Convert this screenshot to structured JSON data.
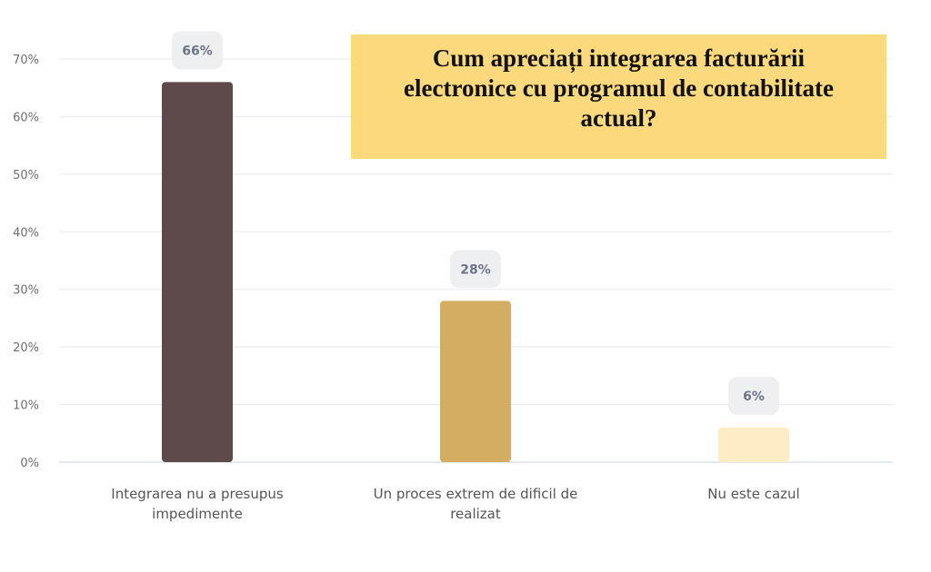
{
  "chart_data": {
    "type": "bar",
    "title": "Cum apreciați integrarea facturării electronice cu programul de contabilitate actual?",
    "categories": [
      "Integrarea nu a presupus impedimente",
      "Un proces extrem de dificil de realizat",
      "Nu este cazul"
    ],
    "category_lines": [
      [
        "Integrarea nu a presupus",
        "impedimente"
      ],
      [
        "Un proces extrem de dificil de",
        "realizat"
      ],
      [
        "Nu este cazul"
      ]
    ],
    "values": [
      66,
      28,
      6
    ],
    "data_labels": [
      "66%",
      "28%",
      "6%"
    ],
    "bar_colors": [
      "#5e4a4a",
      "#d4ad62",
      "#fdecc4"
    ],
    "title_box_color": "#fcd97c",
    "y_ticks": [
      "0%",
      "10%",
      "20%",
      "30%",
      "40%",
      "50%",
      "60%",
      "70%"
    ],
    "ylim": [
      0,
      70
    ],
    "xlabel": "",
    "ylabel": "",
    "grid": true,
    "legend": "none"
  }
}
